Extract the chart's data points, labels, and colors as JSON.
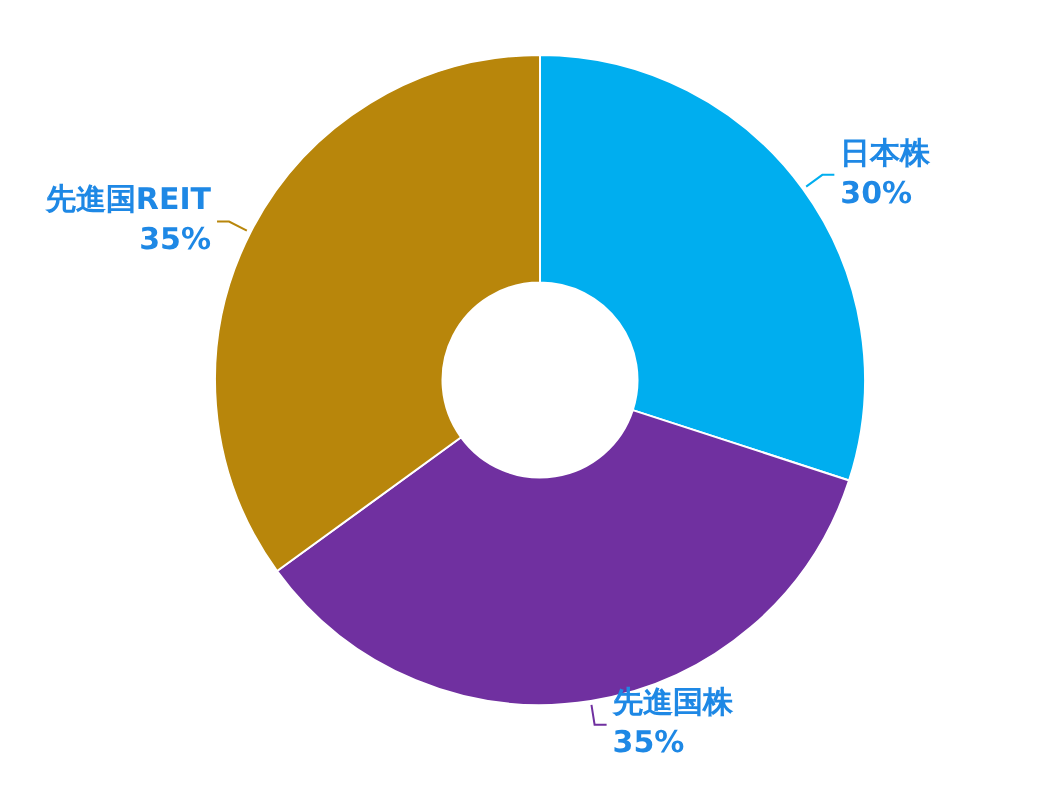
{
  "chart_data": {
    "type": "donut",
    "categories": [
      "日本株",
      "先進国株",
      "先進国REIT"
    ],
    "values": [
      30,
      35,
      35
    ],
    "colors": [
      "#00aeef",
      "#7030a0",
      "#b8860b"
    ],
    "value_labels": [
      "30%",
      "35%",
      "35%"
    ],
    "legend": false
  }
}
